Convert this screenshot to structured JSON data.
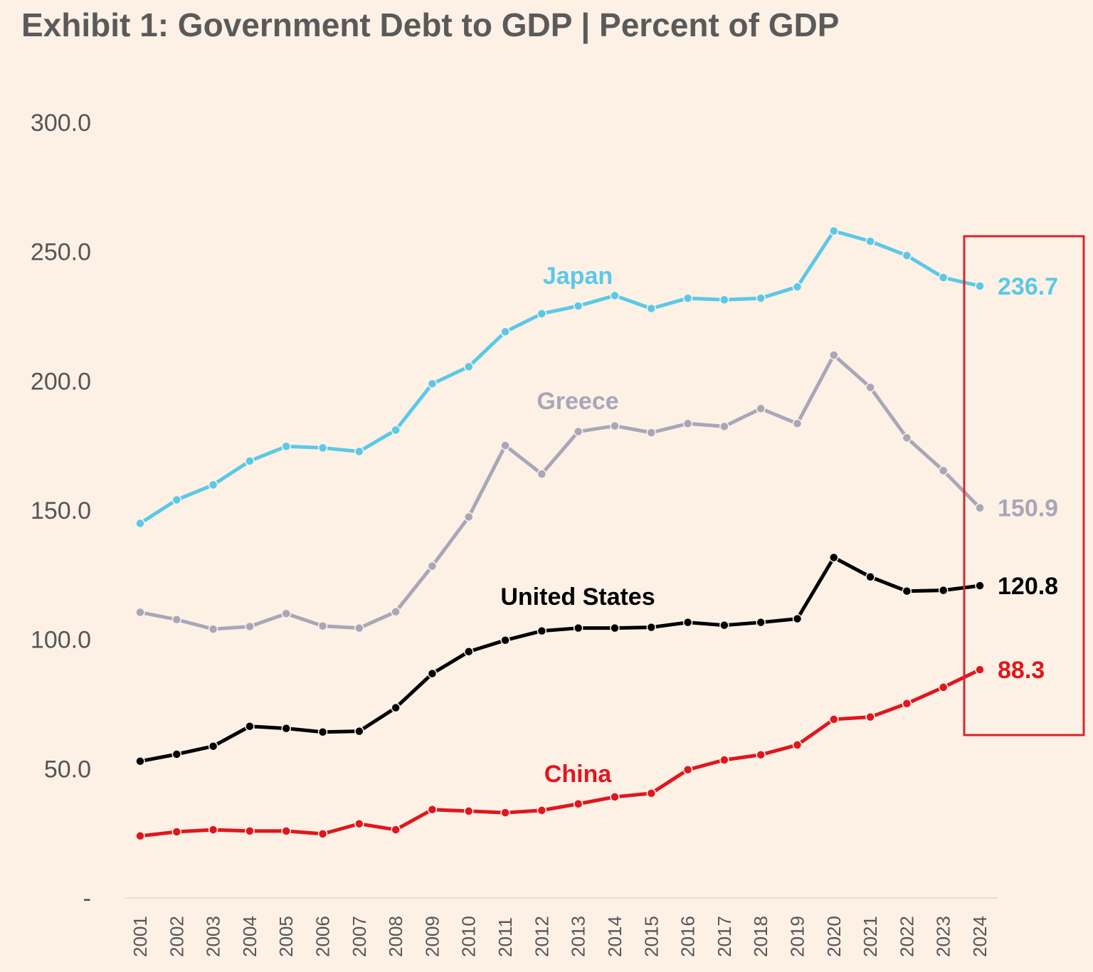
{
  "chart_data": {
    "type": "line",
    "title": "Exhibit 1: Government Debt to GDP | Percent of GDP",
    "xlabel": "",
    "ylabel": "",
    "ylim": [
      0,
      300
    ],
    "yticks": [
      0,
      50,
      100,
      150,
      200,
      250,
      300
    ],
    "ytick_labels": [
      "-",
      "50.0",
      "100.0",
      "150.0",
      "200.0",
      "250.0",
      "300.0"
    ],
    "grid": false,
    "legend": "inline labels",
    "x": [
      2001,
      2002,
      2003,
      2004,
      2005,
      2006,
      2007,
      2008,
      2009,
      2010,
      2011,
      2012,
      2013,
      2014,
      2015,
      2016,
      2017,
      2018,
      2019,
      2020,
      2021,
      2022,
      2023,
      2024
    ],
    "series": [
      {
        "name": "Japan",
        "color": "#5bc8e8",
        "end_label": "236.7",
        "values": [
          144.9,
          154.0,
          159.8,
          169.0,
          174.7,
          174.1,
          172.7,
          181.0,
          198.9,
          205.5,
          219.0,
          226.0,
          229.0,
          233.0,
          228.0,
          232.0,
          231.4,
          232.0,
          236.4,
          258.0,
          254.0,
          248.5,
          240.0,
          236.7
        ]
      },
      {
        "name": "Greece",
        "color": "#a9a6b8",
        "end_label": "150.9",
        "values": [
          110.5,
          107.7,
          104.0,
          105.0,
          110.0,
          105.2,
          104.4,
          110.7,
          128.4,
          147.4,
          175.0,
          164.0,
          180.4,
          182.6,
          180.0,
          183.5,
          182.4,
          189.3,
          183.5,
          210.0,
          197.5,
          178.0,
          165.3,
          150.9
        ]
      },
      {
        "name": "United States",
        "color": "#000000",
        "end_label": "120.8",
        "values": [
          52.9,
          55.6,
          58.7,
          66.4,
          65.6,
          64.2,
          64.5,
          73.6,
          86.8,
          95.3,
          99.7,
          103.3,
          104.4,
          104.4,
          104.7,
          106.6,
          105.5,
          106.6,
          108.0,
          131.7,
          124.2,
          118.7,
          119.0,
          120.8
        ]
      },
      {
        "name": "China",
        "color": "#e0161e",
        "end_label": "88.3",
        "values": [
          24.0,
          25.6,
          26.4,
          25.9,
          25.9,
          24.8,
          28.7,
          26.4,
          34.2,
          33.6,
          33.0,
          33.9,
          36.4,
          39.1,
          40.5,
          49.6,
          53.4,
          55.4,
          59.2,
          69.1,
          70.0,
          75.2,
          81.5,
          88.3
        ]
      }
    ],
    "highlight_color": "#d9252a"
  }
}
